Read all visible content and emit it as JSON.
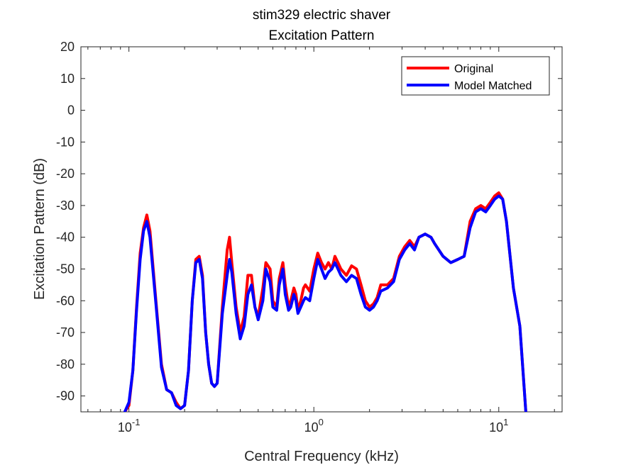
{
  "chart_data": {
    "type": "line",
    "title": "stim329 electric shaver",
    "subtitle": "Excitation Pattern",
    "xlabel": "Central Frequency (kHz)",
    "ylabel": "Excitation Pattern (dB)",
    "xscale": "log",
    "xlim": [
      0.055,
      22
    ],
    "ylim": [
      -95,
      20
    ],
    "yticks": [
      20,
      10,
      0,
      -10,
      -20,
      -30,
      -40,
      -50,
      -60,
      -70,
      -80,
      -90
    ],
    "ytick_labels": [
      "20",
      "10",
      "0",
      "-10",
      "-20",
      "-30",
      "-40",
      "-50",
      "-60",
      "-70",
      "-80",
      "-90"
    ],
    "xticks": [
      {
        "value": 0.1,
        "base": "10",
        "exp": "-1"
      },
      {
        "value": 1,
        "base": "10",
        "exp": "0"
      },
      {
        "value": 10,
        "base": "10",
        "exp": "1"
      }
    ],
    "grid": false,
    "legend_position": "top-right",
    "series": [
      {
        "name": "Original",
        "color": "#ff0000",
        "x": [
          0.095,
          0.1,
          0.105,
          0.11,
          0.115,
          0.12,
          0.125,
          0.13,
          0.14,
          0.15,
          0.16,
          0.17,
          0.18,
          0.19,
          0.2,
          0.21,
          0.22,
          0.23,
          0.24,
          0.25,
          0.26,
          0.27,
          0.28,
          0.29,
          0.3,
          0.32,
          0.34,
          0.35,
          0.36,
          0.38,
          0.4,
          0.42,
          0.44,
          0.46,
          0.48,
          0.5,
          0.53,
          0.55,
          0.58,
          0.6,
          0.63,
          0.65,
          0.68,
          0.7,
          0.73,
          0.75,
          0.78,
          0.8,
          0.82,
          0.85,
          0.88,
          0.9,
          0.95,
          1.0,
          1.05,
          1.1,
          1.15,
          1.2,
          1.25,
          1.3,
          1.35,
          1.4,
          1.5,
          1.6,
          1.7,
          1.8,
          1.9,
          2.0,
          2.1,
          2.2,
          2.3,
          2.5,
          2.7,
          2.9,
          3.1,
          3.3,
          3.5,
          3.7,
          4.0,
          4.3,
          4.5,
          5.0,
          5.5,
          6.0,
          6.5,
          7.0,
          7.5,
          8.0,
          8.5,
          9.0,
          9.5,
          10.0,
          10.5,
          11.0,
          12.0,
          13.0,
          14.0
        ],
        "y": [
          -95,
          -93,
          -82,
          -62,
          -45,
          -37,
          -33,
          -38,
          -60,
          -80,
          -88,
          -89,
          -92,
          -94,
          -93,
          -82,
          -60,
          -47,
          -46,
          -52,
          -70,
          -80,
          -86,
          -87,
          -86,
          -62,
          -44,
          -40,
          -48,
          -62,
          -70,
          -65,
          -52,
          -52,
          -62,
          -65,
          -56,
          -48,
          -50,
          -60,
          -62,
          -53,
          -48,
          -55,
          -62,
          -60,
          -56,
          -58,
          -63,
          -60,
          -56,
          -55,
          -57,
          -50,
          -45,
          -48,
          -50,
          -48,
          -50,
          -46,
          -48,
          -50,
          -52,
          -49,
          -50,
          -55,
          -60,
          -62,
          -61,
          -59,
          -55,
          -55,
          -53,
          -46,
          -43,
          -41,
          -43,
          -40,
          -39,
          -40,
          -42,
          -46,
          -48,
          -47,
          -46,
          -35,
          -31,
          -30,
          -31,
          -29,
          -27,
          -26,
          -28,
          -35,
          -56,
          -68,
          -95
        ]
      },
      {
        "name": "Model Matched",
        "color": "#0000ff",
        "x": [
          0.095,
          0.1,
          0.105,
          0.11,
          0.115,
          0.12,
          0.125,
          0.13,
          0.14,
          0.15,
          0.16,
          0.17,
          0.18,
          0.19,
          0.2,
          0.21,
          0.22,
          0.23,
          0.24,
          0.25,
          0.26,
          0.27,
          0.28,
          0.29,
          0.3,
          0.32,
          0.34,
          0.35,
          0.36,
          0.38,
          0.4,
          0.42,
          0.44,
          0.46,
          0.48,
          0.5,
          0.53,
          0.55,
          0.58,
          0.6,
          0.63,
          0.65,
          0.68,
          0.7,
          0.73,
          0.75,
          0.78,
          0.8,
          0.82,
          0.85,
          0.88,
          0.9,
          0.95,
          1.0,
          1.05,
          1.1,
          1.15,
          1.2,
          1.25,
          1.3,
          1.35,
          1.4,
          1.5,
          1.6,
          1.7,
          1.8,
          1.9,
          2.0,
          2.1,
          2.2,
          2.3,
          2.5,
          2.7,
          2.9,
          3.1,
          3.3,
          3.5,
          3.7,
          4.0,
          4.3,
          4.5,
          5.0,
          5.5,
          6.0,
          6.5,
          7.0,
          7.5,
          8.0,
          8.5,
          9.0,
          9.5,
          10.0,
          10.5,
          11.0,
          12.0,
          13.0,
          14.0
        ],
        "y": [
          -95,
          -92,
          -82,
          -63,
          -47,
          -38,
          -35,
          -40,
          -61,
          -81,
          -88,
          -89,
          -93,
          -94,
          -93,
          -82,
          -60,
          -48,
          -47,
          -53,
          -70,
          -80,
          -86,
          -87,
          -86,
          -64,
          -52,
          -47,
          -51,
          -64,
          -72,
          -68,
          -58,
          -55,
          -62,
          -66,
          -60,
          -50,
          -54,
          -62,
          -63,
          -55,
          -50,
          -58,
          -63,
          -62,
          -58,
          -60,
          -64,
          -62,
          -60,
          -59,
          -60,
          -53,
          -47,
          -50,
          -53,
          -51,
          -50,
          -48,
          -50,
          -52,
          -54,
          -52,
          -53,
          -58,
          -62,
          -63,
          -62,
          -60,
          -57,
          -56,
          -54,
          -47,
          -44,
          -42,
          -44,
          -40,
          -39,
          -40,
          -42,
          -46,
          -48,
          -47,
          -46,
          -37,
          -32,
          -31,
          -32,
          -30,
          -28,
          -27,
          -28,
          -35,
          -56,
          -68,
          -95
        ]
      }
    ]
  }
}
